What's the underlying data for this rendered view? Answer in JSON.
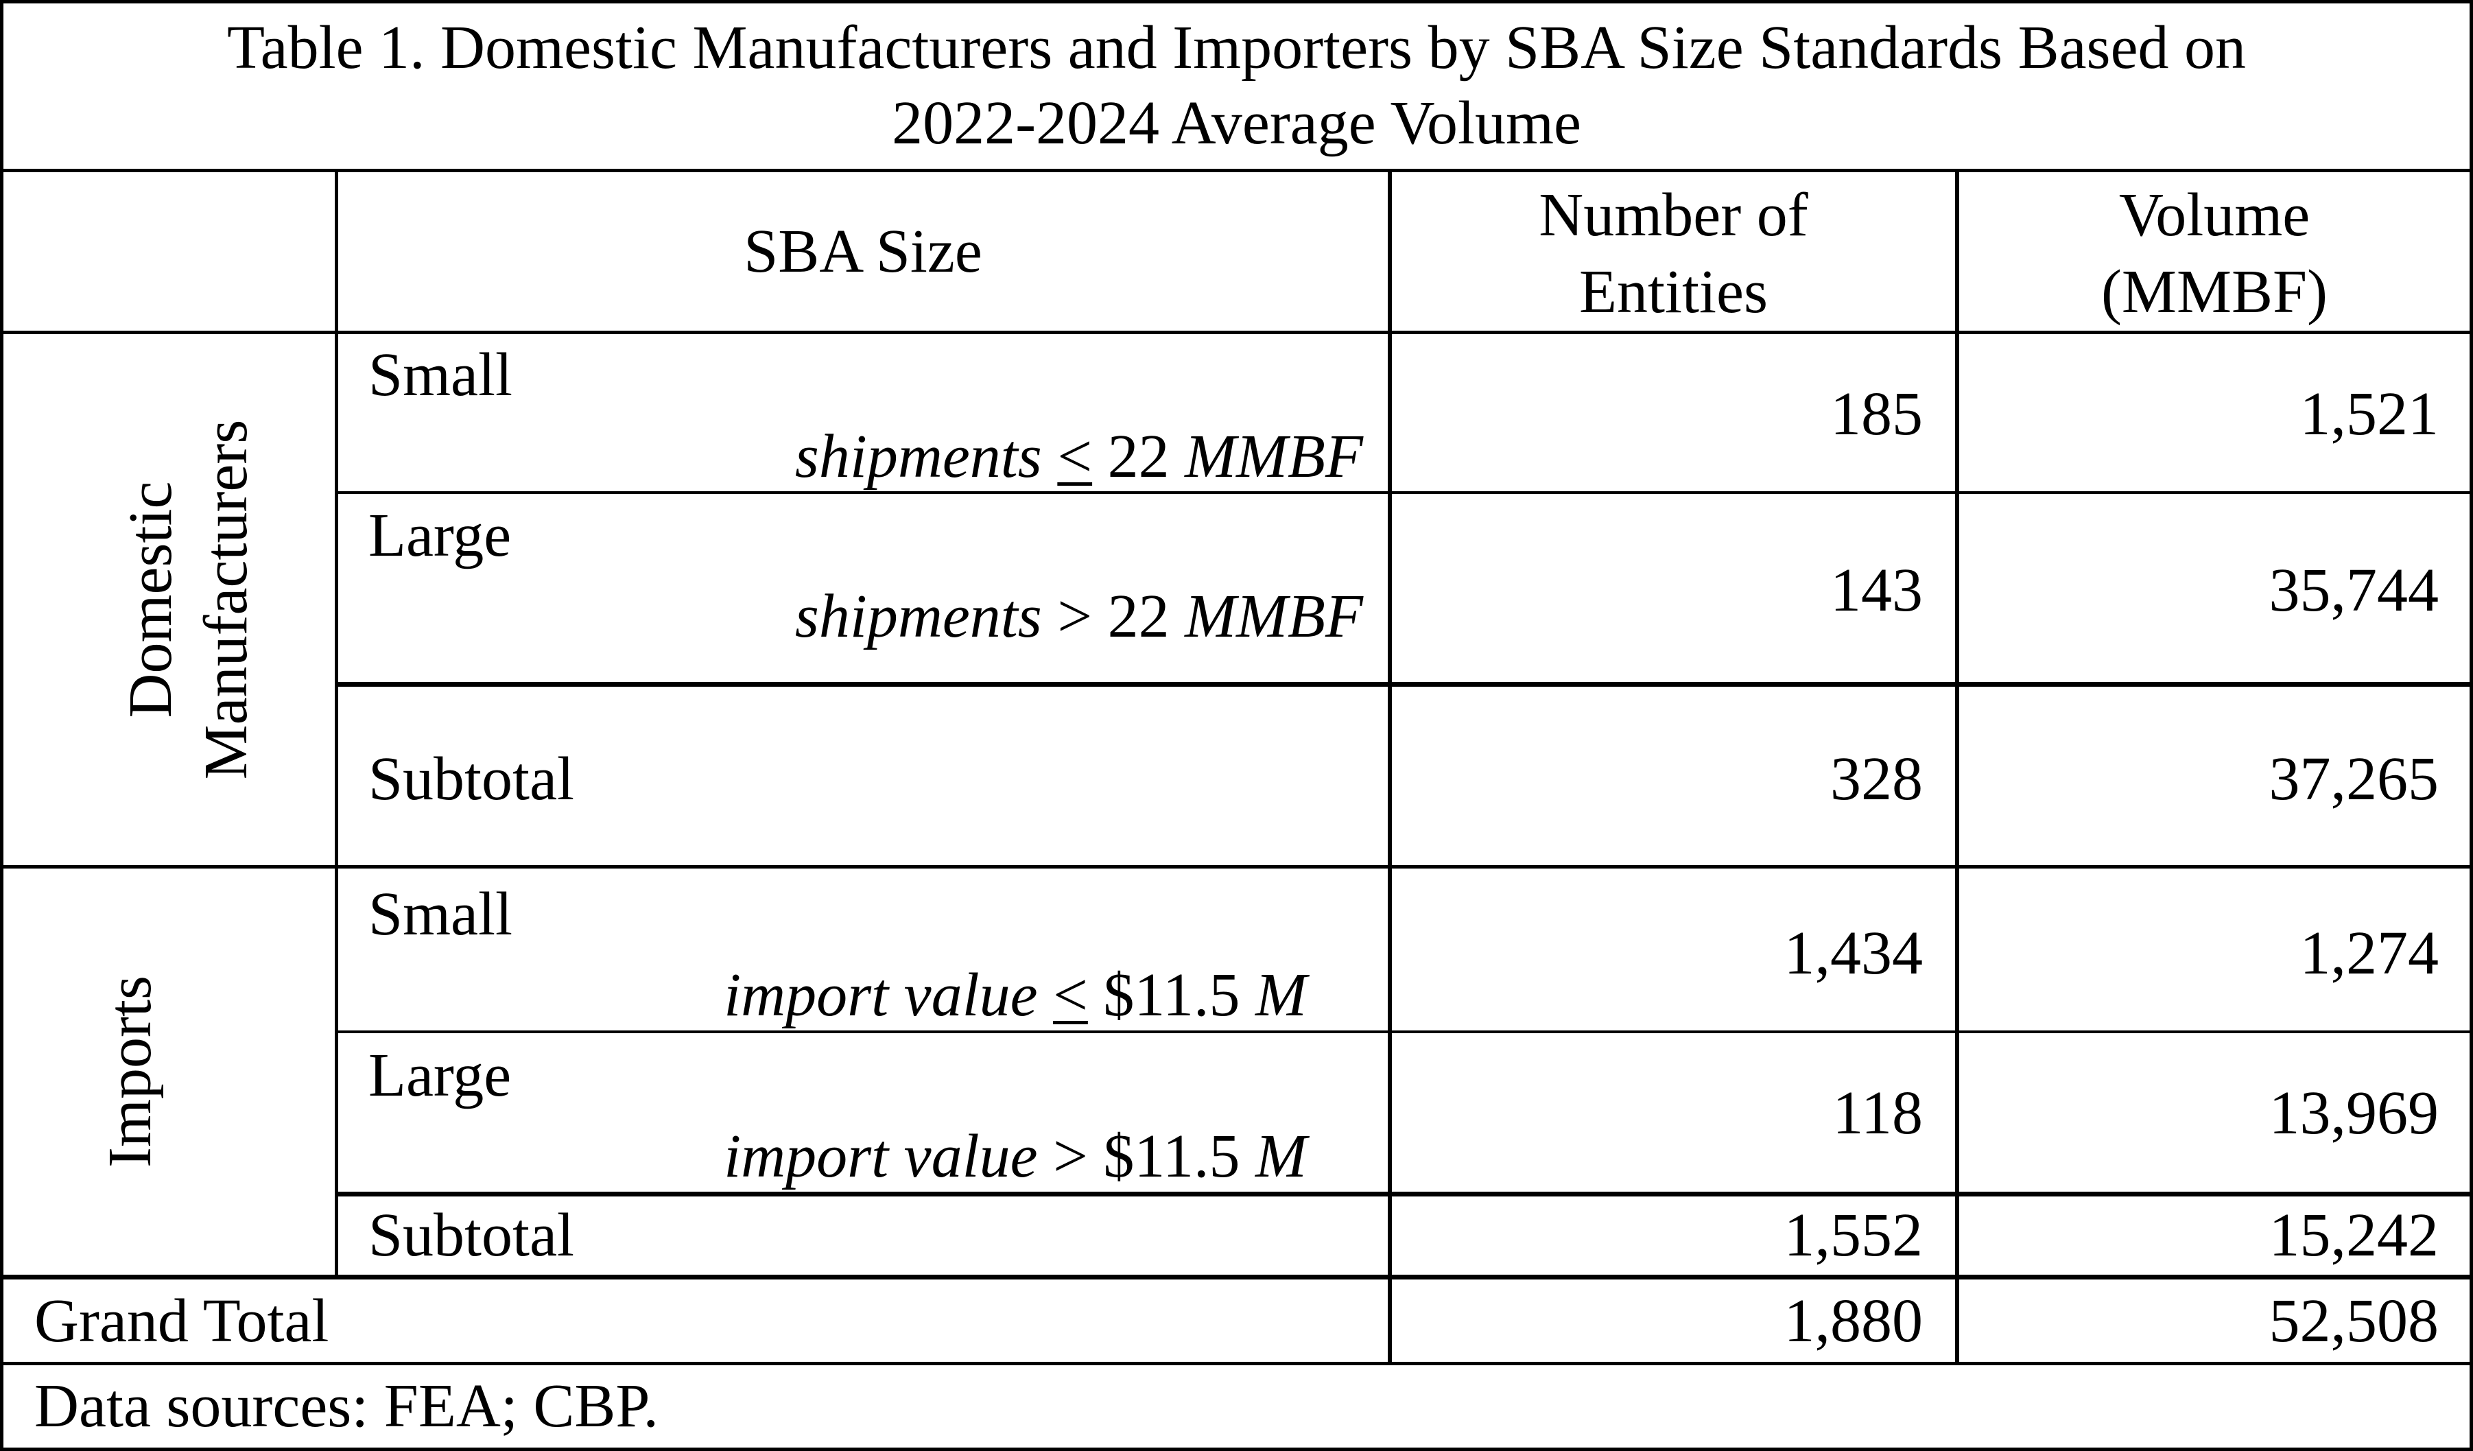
{
  "title": {
    "line1": "Table 1. Domestic Manufacturers and Importers by SBA Size Standards Based on",
    "line2": "2022-2024 Average Volume"
  },
  "header": {
    "sba_size": "SBA Size",
    "entities_line1": "Number of",
    "entities_line2": "Entities",
    "volume_line1": "Volume",
    "volume_line2": "(MMBF)"
  },
  "groups": {
    "domestic_line1": "Domestic",
    "domestic_line2": "Manufacturers",
    "imports": "Imports"
  },
  "domestic": {
    "small": {
      "label": "Small",
      "crit_pre": "shipments ",
      "crit_op": "<",
      "crit_post": " 22 ",
      "crit_unit": "MMBF",
      "entities": "185",
      "volume": "1,521"
    },
    "large": {
      "label": "Large",
      "crit_pre": "shipments ",
      "crit_op": ">",
      "crit_post": " 22 ",
      "crit_unit": "MMBF",
      "entities": "143",
      "volume": "35,744"
    },
    "subtotal": {
      "label": "Subtotal",
      "entities": "328",
      "volume": "37,265"
    }
  },
  "imports": {
    "small": {
      "label": "Small",
      "crit_pre": "import value ",
      "crit_op": "<",
      "crit_post": " $11.5 ",
      "crit_unit": "M",
      "entities": "1,434",
      "volume": "1,274"
    },
    "large": {
      "label": "Large",
      "crit_pre": "import value ",
      "crit_op": ">",
      "crit_post": " $11.5 ",
      "crit_unit": "M",
      "entities": "118",
      "volume": "13,969"
    },
    "subtotal": {
      "label": "Subtotal",
      "entities": "1,552",
      "volume": "15,242"
    }
  },
  "grand_total": {
    "label": "Grand Total",
    "entities": "1,880",
    "volume": "52,508"
  },
  "footnote": "Data sources: FEA; CBP."
}
